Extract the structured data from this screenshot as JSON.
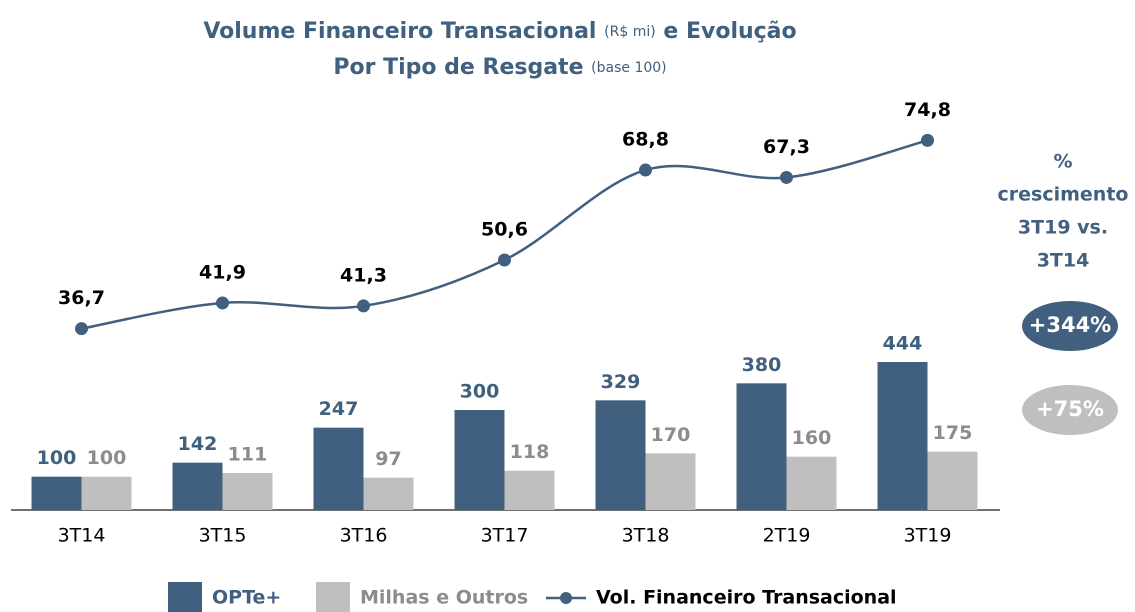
{
  "chart_data": {
    "type": "bar",
    "title": "Volume Financeiro Transacional",
    "title_unit": "(R$ mi)",
    "title_suffix": "e Evolução",
    "subtitle": "Por Tipo de Resgate",
    "subtitle_unit": "(base 100)",
    "categories": [
      "3T14",
      "3T15",
      "3T16",
      "3T17",
      "3T18",
      "2T19",
      "3T19"
    ],
    "series": [
      {
        "name": "OPTe+",
        "color": "#41607f",
        "label_color": "#41607f",
        "values": [
          100,
          142,
          247,
          300,
          329,
          380,
          444
        ]
      },
      {
        "name": "Milhas e Outros",
        "color": "#bfbfbf",
        "label_color": "#8c8c8c",
        "values": [
          100,
          111,
          97,
          118,
          170,
          160,
          175
        ]
      },
      {
        "name": "Vol. Financeiro Transacional",
        "type": "line",
        "axis": "y2",
        "color": "#41607f",
        "label_color": "#000000",
        "values": [
          36.7,
          41.9,
          41.3,
          50.6,
          68.8,
          67.3,
          74.8
        ],
        "value_labels": [
          "36,7",
          "41,9",
          "41,3",
          "50,6",
          "68,8",
          "67,3",
          "74,8"
        ]
      }
    ],
    "ylim": [
      0,
      1260
    ],
    "y2lim": [
      0,
      85
    ],
    "annotation": {
      "lines": [
        "%",
        "crescimento",
        "3T19 vs.",
        "3T14"
      ],
      "color": "#41607f",
      "badges": [
        {
          "text": "+344%",
          "color": "#41607f"
        },
        {
          "text": "+75%",
          "color": "#bfbfbf"
        }
      ]
    }
  }
}
